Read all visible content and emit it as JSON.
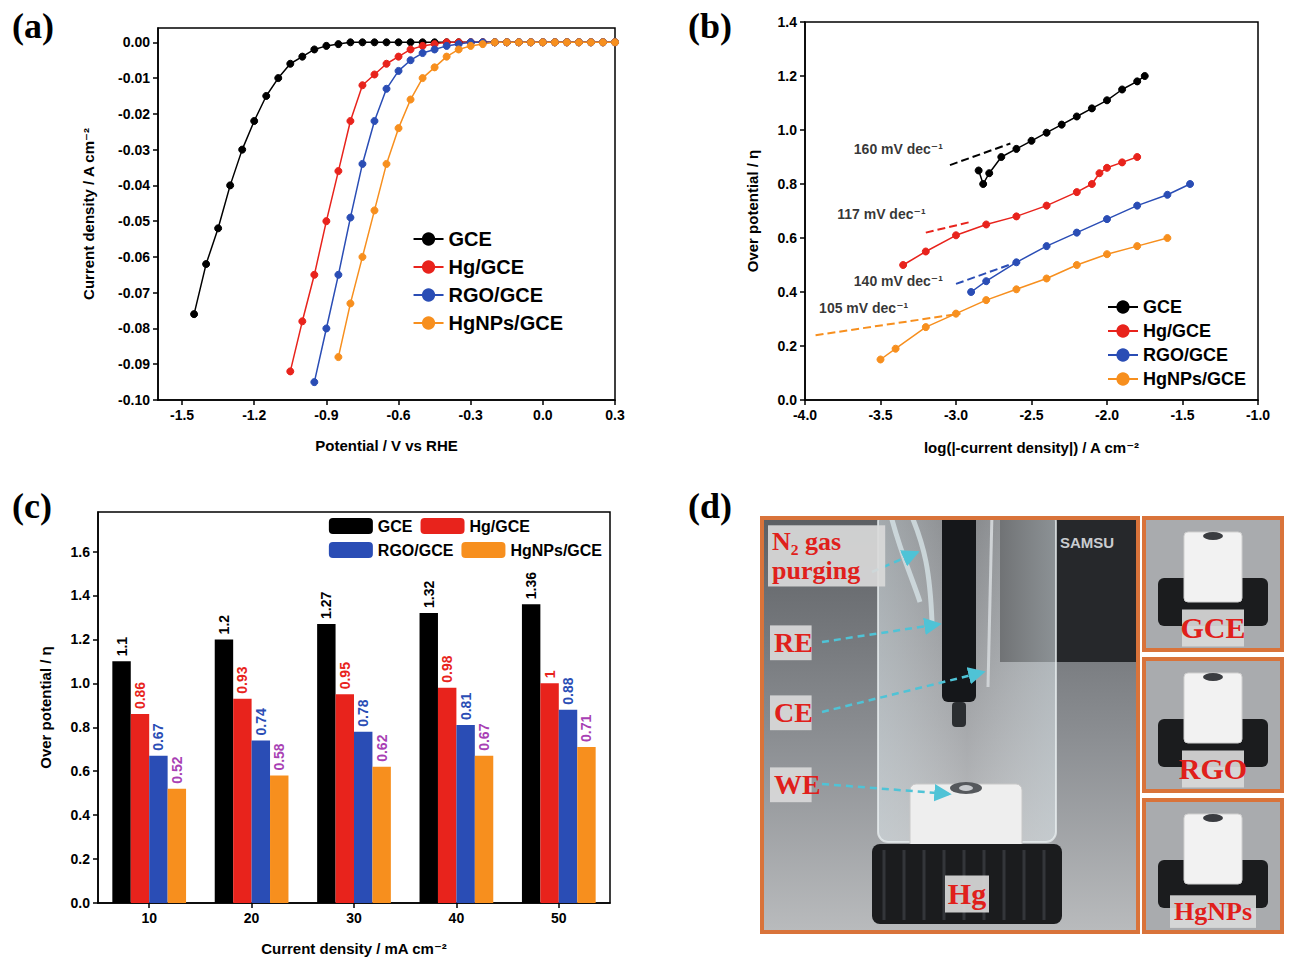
{
  "chart_data": [
    {
      "panel": "(a)",
      "type": "line",
      "marker": "circle",
      "x_label": "Potential / V vs RHE",
      "y_label": "Current density / A cm⁻²",
      "x": [
        -1.45,
        -1.4,
        -1.35,
        -1.3,
        -1.25,
        -1.2,
        -1.15,
        -1.1,
        -1.05,
        -1.0,
        -0.95,
        -0.9,
        -0.85,
        -0.8,
        -0.75,
        -0.7,
        -0.65,
        -0.6,
        -0.55,
        -0.5,
        -0.45,
        -0.4,
        -0.35,
        -0.3,
        -0.25,
        -0.2,
        -0.15,
        -0.1,
        -0.05,
        0.0,
        0.05,
        0.1,
        0.15,
        0.2,
        0.25,
        0.3
      ],
      "series": [
        {
          "name": "GCE",
          "color": "#000000",
          "values": [
            -0.076,
            -0.062,
            -0.052,
            -0.04,
            -0.03,
            -0.022,
            -0.015,
            -0.01,
            -0.006,
            -0.004,
            -0.002,
            -0.001,
            -0.0005,
            0,
            0,
            0,
            0,
            0,
            0,
            0,
            0,
            0,
            0,
            0,
            0,
            0,
            0,
            0,
            0,
            0,
            0,
            0,
            0,
            0,
            0,
            0
          ]
        },
        {
          "name": "Hg/GCE",
          "color": "#e8231c",
          "values": [
            null,
            null,
            null,
            null,
            null,
            null,
            null,
            null,
            -0.092,
            -0.078,
            -0.065,
            -0.05,
            -0.036,
            -0.022,
            -0.012,
            -0.009,
            -0.006,
            -0.004,
            -0.002,
            -0.001,
            -0.0005,
            0,
            0,
            0,
            0,
            0,
            0,
            0,
            0,
            0,
            0,
            0,
            0,
            0,
            0,
            0
          ]
        },
        {
          "name": "RGO/GCE",
          "color": "#2a4db5",
          "values": [
            null,
            null,
            null,
            null,
            null,
            null,
            null,
            null,
            null,
            null,
            -0.095,
            -0.08,
            -0.065,
            -0.049,
            -0.034,
            -0.022,
            -0.013,
            -0.008,
            -0.005,
            -0.003,
            -0.002,
            -0.001,
            -0.0005,
            0,
            0,
            0,
            0,
            0,
            0,
            0,
            0,
            0,
            0,
            0,
            0,
            0
          ]
        },
        {
          "name": "HgNPs/GCE",
          "color": "#f78f1e",
          "values": [
            null,
            null,
            null,
            null,
            null,
            null,
            null,
            null,
            null,
            null,
            null,
            null,
            -0.088,
            -0.073,
            -0.06,
            -0.047,
            -0.034,
            -0.024,
            -0.016,
            -0.01,
            -0.007,
            -0.004,
            -0.002,
            -0.001,
            -0.0005,
            0,
            0,
            0,
            0,
            0,
            0,
            0,
            0,
            0,
            0,
            0
          ]
        }
      ],
      "xlim": [
        -1.6,
        0.3
      ],
      "xticks": [
        -1.5,
        -1.2,
        -0.9,
        -0.6,
        -0.3,
        {
          "value": 0,
          "label": "0.0"
        },
        0.3
      ],
      "ylim": [
        -0.1,
        0.004
      ],
      "yticks": [
        {
          "value": -0.1,
          "label": "-0.10"
        },
        -0.09,
        -0.08,
        -0.07,
        -0.06,
        -0.05,
        -0.04,
        -0.03,
        -0.02,
        -0.01,
        {
          "value": 0,
          "label": "0.00"
        }
      ],
      "grid": false,
      "legend": "lower right"
    },
    {
      "panel": "(b)",
      "type": "line",
      "marker": "circle",
      "x_label": "log(|-current density|) / A cm⁻²",
      "y_label": "Over potential / η",
      "series": [
        {
          "name": "GCE",
          "color": "#000000",
          "x": [
            -2.85,
            -2.82,
            -2.78,
            -2.7,
            -2.6,
            -2.5,
            -2.4,
            -2.3,
            -2.2,
            -2.1,
            -2.0,
            -1.9,
            -1.8,
            -1.75
          ],
          "values": [
            0.85,
            0.8,
            0.84,
            0.9,
            0.93,
            0.96,
            0.99,
            1.02,
            1.05,
            1.08,
            1.11,
            1.15,
            1.18,
            1.2
          ]
        },
        {
          "name": "Hg/GCE",
          "color": "#e8231c",
          "x": [
            -3.35,
            -3.2,
            -3.0,
            -2.8,
            -2.6,
            -2.4,
            -2.2,
            -2.1,
            -2.05,
            -2.0,
            -1.9,
            -1.8
          ],
          "values": [
            0.5,
            0.55,
            0.61,
            0.65,
            0.68,
            0.72,
            0.77,
            0.8,
            0.84,
            0.86,
            0.88,
            0.9
          ]
        },
        {
          "name": "RGO/GCE",
          "color": "#2a4db5",
          "x": [
            -2.9,
            -2.8,
            -2.6,
            -2.4,
            -2.2,
            -2.0,
            -1.8,
            -1.6,
            -1.45
          ],
          "values": [
            0.4,
            0.44,
            0.51,
            0.57,
            0.62,
            0.67,
            0.72,
            0.76,
            0.8
          ]
        },
        {
          "name": "HgNPs/GCE",
          "color": "#f78f1e",
          "x": [
            -3.5,
            -3.4,
            -3.2,
            -3.0,
            -2.8,
            -2.6,
            -2.4,
            -2.2,
            -2.0,
            -1.8,
            -1.6
          ],
          "values": [
            0.15,
            0.19,
            0.27,
            0.32,
            0.37,
            0.41,
            0.45,
            0.5,
            0.54,
            0.57,
            0.6
          ]
        }
      ],
      "annotations": [
        {
          "text": "160 mV dec⁻¹",
          "x": -3.68,
          "y": 0.93,
          "color": "#000000",
          "line_style": "dashed",
          "fit_x": [
            -3.04,
            -2.64
          ],
          "fit_values": [
            0.87,
            0.95
          ]
        },
        {
          "text": "117 mV dec⁻¹",
          "x": -3.79,
          "y": 0.69,
          "color": "#e8231c",
          "line_style": "dashed",
          "fit_x": [
            -3.2,
            -2.9
          ],
          "fit_values": [
            0.62,
            0.66
          ]
        },
        {
          "text": "140 mV dec⁻¹",
          "x": -3.68,
          "y": 0.44,
          "color": "#2a4db5",
          "line_style": "dashed",
          "fit_x": [
            -3.0,
            -2.6
          ],
          "fit_values": [
            0.43,
            0.51
          ]
        },
        {
          "text": "105 mV dec⁻¹",
          "x": -3.91,
          "y": 0.34,
          "color": "#f78f1e",
          "line_style": "dashed",
          "fit_x": [
            -3.93,
            -2.97
          ],
          "fit_values": [
            0.24,
            0.32
          ]
        }
      ],
      "xlim": [
        -4,
        -1
      ],
      "xticks": [
        {
          "value": -4,
          "label": "-4.0"
        },
        -3.5,
        {
          "value": -3,
          "label": "-3.0"
        },
        -2.5,
        {
          "value": -2,
          "label": "-2.0"
        },
        -1.5,
        {
          "value": -1,
          "label": "-1.0"
        }
      ],
      "ylim": [
        0,
        1.4
      ],
      "yticks": [
        {
          "value": 0,
          "label": "0.0"
        },
        0.2,
        0.4,
        0.6,
        0.8,
        {
          "value": 1,
          "label": "1.0"
        },
        1.2,
        1.4
      ],
      "grid": false,
      "legend": "lower right"
    },
    {
      "panel": "(c)",
      "type": "bar",
      "x_label": "Current density / mA cm⁻²",
      "y_label": "Over potential / η",
      "categories": [
        "10",
        "20",
        "30",
        "40",
        "50"
      ],
      "series": [
        {
          "name": "GCE",
          "color": "#000000",
          "values": [
            1.1,
            1.2,
            1.27,
            1.32,
            1.36
          ]
        },
        {
          "name": "Hg/GCE",
          "color": "#e8231c",
          "values": [
            0.86,
            0.93,
            0.95,
            0.98,
            1
          ]
        },
        {
          "name": "RGO/GCE",
          "color": "#2a4db5",
          "values": [
            0.67,
            0.74,
            0.78,
            0.81,
            0.88
          ]
        },
        {
          "name": "HgNPs/GCE",
          "color": "#f78f1e",
          "values": [
            0.52,
            0.58,
            0.62,
            0.67,
            0.71
          ]
        }
      ],
      "ylim": [
        0,
        1.78
      ],
      "yticks": [
        {
          "value": 0,
          "label": "0.0"
        },
        0.2,
        0.4,
        0.6,
        0.8,
        {
          "value": 1,
          "label": "1.0"
        },
        1.2,
        1.4,
        1.6
      ],
      "data_labels": true,
      "grid": false,
      "legend": "upper right"
    }
  ],
  "photo": {
    "panel": "(d)",
    "labels": {
      "gas": "N₂ gas purging",
      "reference": "RE",
      "counter": "CE",
      "working": "WE",
      "base": "Hg"
    },
    "background_text": "SAMSU",
    "insets": [
      "GCE",
      "RGO",
      "HgNPs"
    ]
  }
}
